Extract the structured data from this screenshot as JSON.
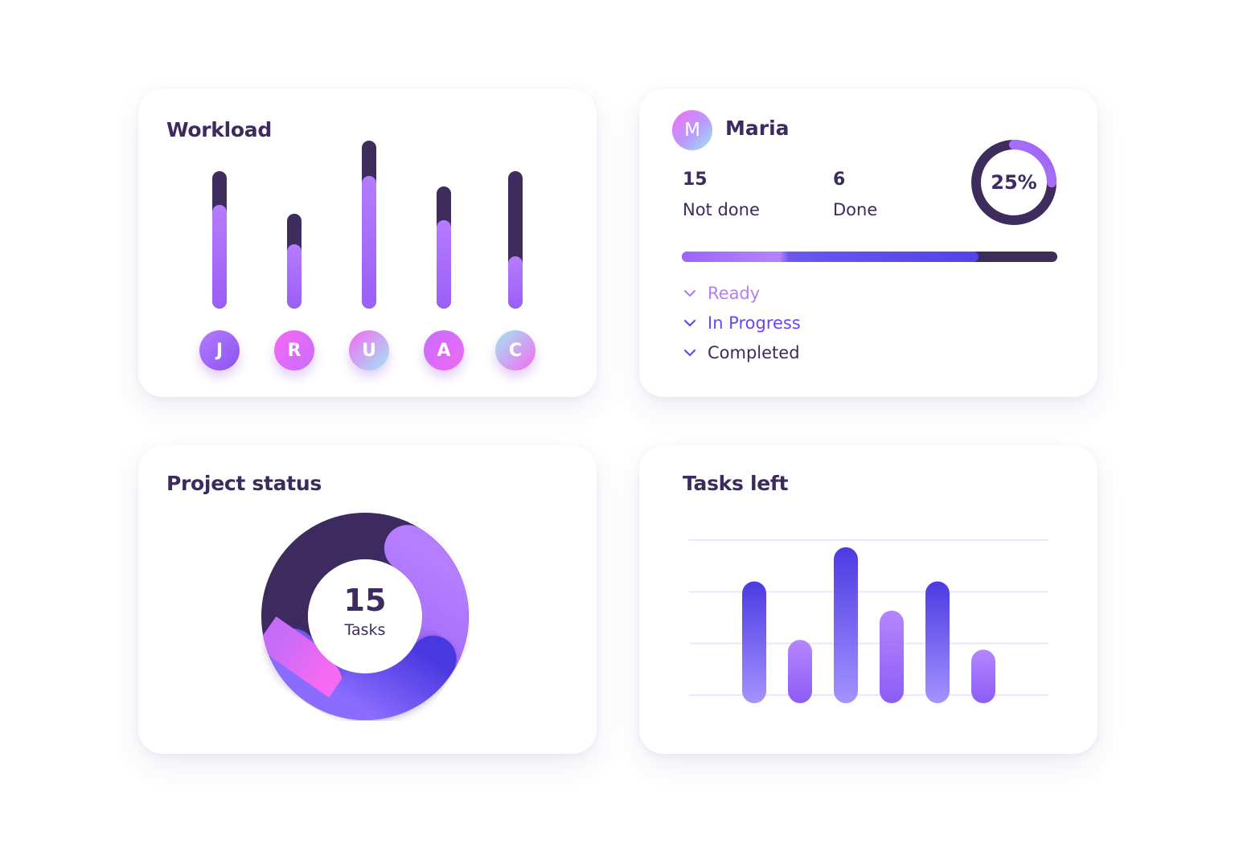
{
  "workload": {
    "title": "Workload",
    "people": [
      {
        "initial": "J",
        "total": 9,
        "done": 6.8,
        "avatar_colors": [
          "#b57cff",
          "#8a52f0"
        ]
      },
      {
        "initial": "R",
        "total": 6.2,
        "done": 4.2,
        "avatar_colors": [
          "#f56af2",
          "#c86cff"
        ]
      },
      {
        "initial": "U",
        "total": 11,
        "done": 8.7,
        "avatar_colors": [
          "#f56af2",
          "#9fe7f2"
        ]
      },
      {
        "initial": "A",
        "total": 8,
        "done": 5.8,
        "avatar_colors": [
          "#c86cff",
          "#f06af0"
        ]
      },
      {
        "initial": "C",
        "total": 9,
        "done": 3.4,
        "avatar_colors": [
          "#9fe7f2",
          "#f56af2"
        ]
      }
    ]
  },
  "user": {
    "avatar_initial": "M",
    "name": "Maria",
    "not_done_count": "15",
    "not_done_label": "Not done",
    "done_count": "6",
    "done_label": "Done",
    "percent_text": "25%",
    "percent_value": 25,
    "progress_fraction": 0.79,
    "statuses": [
      {
        "label": "Ready",
        "color": "#b47cff"
      },
      {
        "label": "In Progress",
        "color": "#6a45f0"
      },
      {
        "label": "Completed",
        "color": "#3d2a5e"
      }
    ]
  },
  "project_status": {
    "title": "Project status",
    "center_value": "15",
    "center_label": "Tasks",
    "segments": [
      {
        "name": "dark",
        "share": 0.55,
        "color": "#3d2a5e"
      },
      {
        "name": "violet",
        "share": 0.25,
        "color": "#a972ff"
      },
      {
        "name": "blue",
        "share": 0.12,
        "color": "#5d4ae8"
      },
      {
        "name": "pink",
        "share": 0.08,
        "color": "#f06af2"
      }
    ]
  },
  "tasks_left": {
    "title": "Tasks left",
    "gridlines": 4,
    "bars": [
      {
        "value": 5.0,
        "style": "blue"
      },
      {
        "value": 2.6,
        "style": "violet"
      },
      {
        "value": 6.4,
        "style": "blue"
      },
      {
        "value": 3.8,
        "style": "violet"
      },
      {
        "value": 5.0,
        "style": "blue"
      },
      {
        "value": 2.2,
        "style": "violet"
      }
    ],
    "max": 6.4
  }
}
